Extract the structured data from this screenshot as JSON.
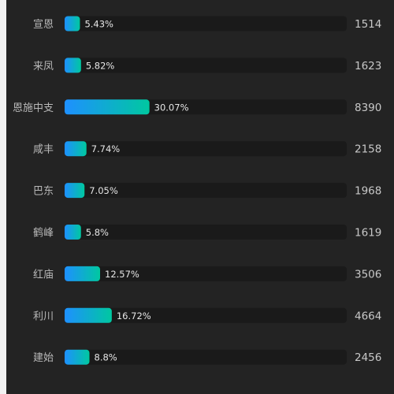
{
  "chart_data": {
    "type": "bar",
    "orientation": "horizontal",
    "categories": [
      "宣恩",
      "来凤",
      "恩施中支",
      "咸丰",
      "巴东",
      "鹤峰",
      "红庙",
      "利川",
      "建始"
    ],
    "values": [
      1514,
      1623,
      8390,
      2158,
      1968,
      1619,
      3506,
      4664,
      2456
    ],
    "percent_labels": [
      "5.43%",
      "5.82%",
      "30.07%",
      "7.74%",
      "7.05%",
      "5.8%",
      "12.57%",
      "16.72%",
      "8.8%"
    ],
    "percent_values": [
      5.43,
      5.82,
      30.07,
      7.74,
      7.05,
      5.8,
      12.57,
      16.72,
      8.8
    ],
    "xlim": [
      0,
      100
    ],
    "grid": false,
    "legend": "none",
    "colors": {
      "panel_bg": "#232323",
      "page_bg": "#f2f2f2",
      "track": "#1a1a1a",
      "bar_start": "#1e90ff",
      "bar_end": "#00c8a0",
      "category_text": "#b8b8b8",
      "value_text": "#c8c8c8",
      "percent_text": "#e6e6e6"
    }
  }
}
